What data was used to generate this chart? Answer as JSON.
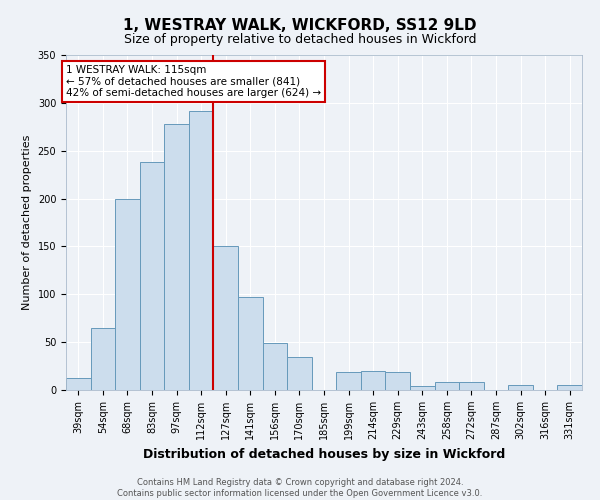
{
  "title": "1, WESTRAY WALK, WICKFORD, SS12 9LD",
  "subtitle": "Size of property relative to detached houses in Wickford",
  "xlabel": "Distribution of detached houses by size in Wickford",
  "ylabel": "Number of detached properties",
  "bar_labels": [
    "39sqm",
    "54sqm",
    "68sqm",
    "83sqm",
    "97sqm",
    "112sqm",
    "127sqm",
    "141sqm",
    "156sqm",
    "170sqm",
    "185sqm",
    "199sqm",
    "214sqm",
    "229sqm",
    "243sqm",
    "258sqm",
    "272sqm",
    "287sqm",
    "302sqm",
    "316sqm",
    "331sqm"
  ],
  "bar_values": [
    13,
    65,
    200,
    238,
    278,
    291,
    150,
    97,
    49,
    35,
    0,
    19,
    20,
    19,
    4,
    8,
    8,
    0,
    5,
    0,
    5
  ],
  "bar_color": "#ccdded",
  "bar_edge_color": "#6699bb",
  "ylim": [
    0,
    350
  ],
  "yticks": [
    0,
    50,
    100,
    150,
    200,
    250,
    300,
    350
  ],
  "vline_index": 5,
  "vline_color": "#cc0000",
  "annotation_text": "1 WESTRAY WALK: 115sqm\n← 57% of detached houses are smaller (841)\n42% of semi-detached houses are larger (624) →",
  "annotation_box_color": "#ffffff",
  "annotation_box_edge": "#cc0000",
  "footer_text": "Contains HM Land Registry data © Crown copyright and database right 2024.\nContains public sector information licensed under the Open Government Licence v3.0.",
  "background_color": "#eef2f7",
  "grid_color": "#ffffff",
  "title_fontsize": 11,
  "subtitle_fontsize": 9,
  "ylabel_fontsize": 8,
  "xlabel_fontsize": 9,
  "tick_fontsize": 7,
  "annotation_fontsize": 7.5,
  "footer_fontsize": 6
}
